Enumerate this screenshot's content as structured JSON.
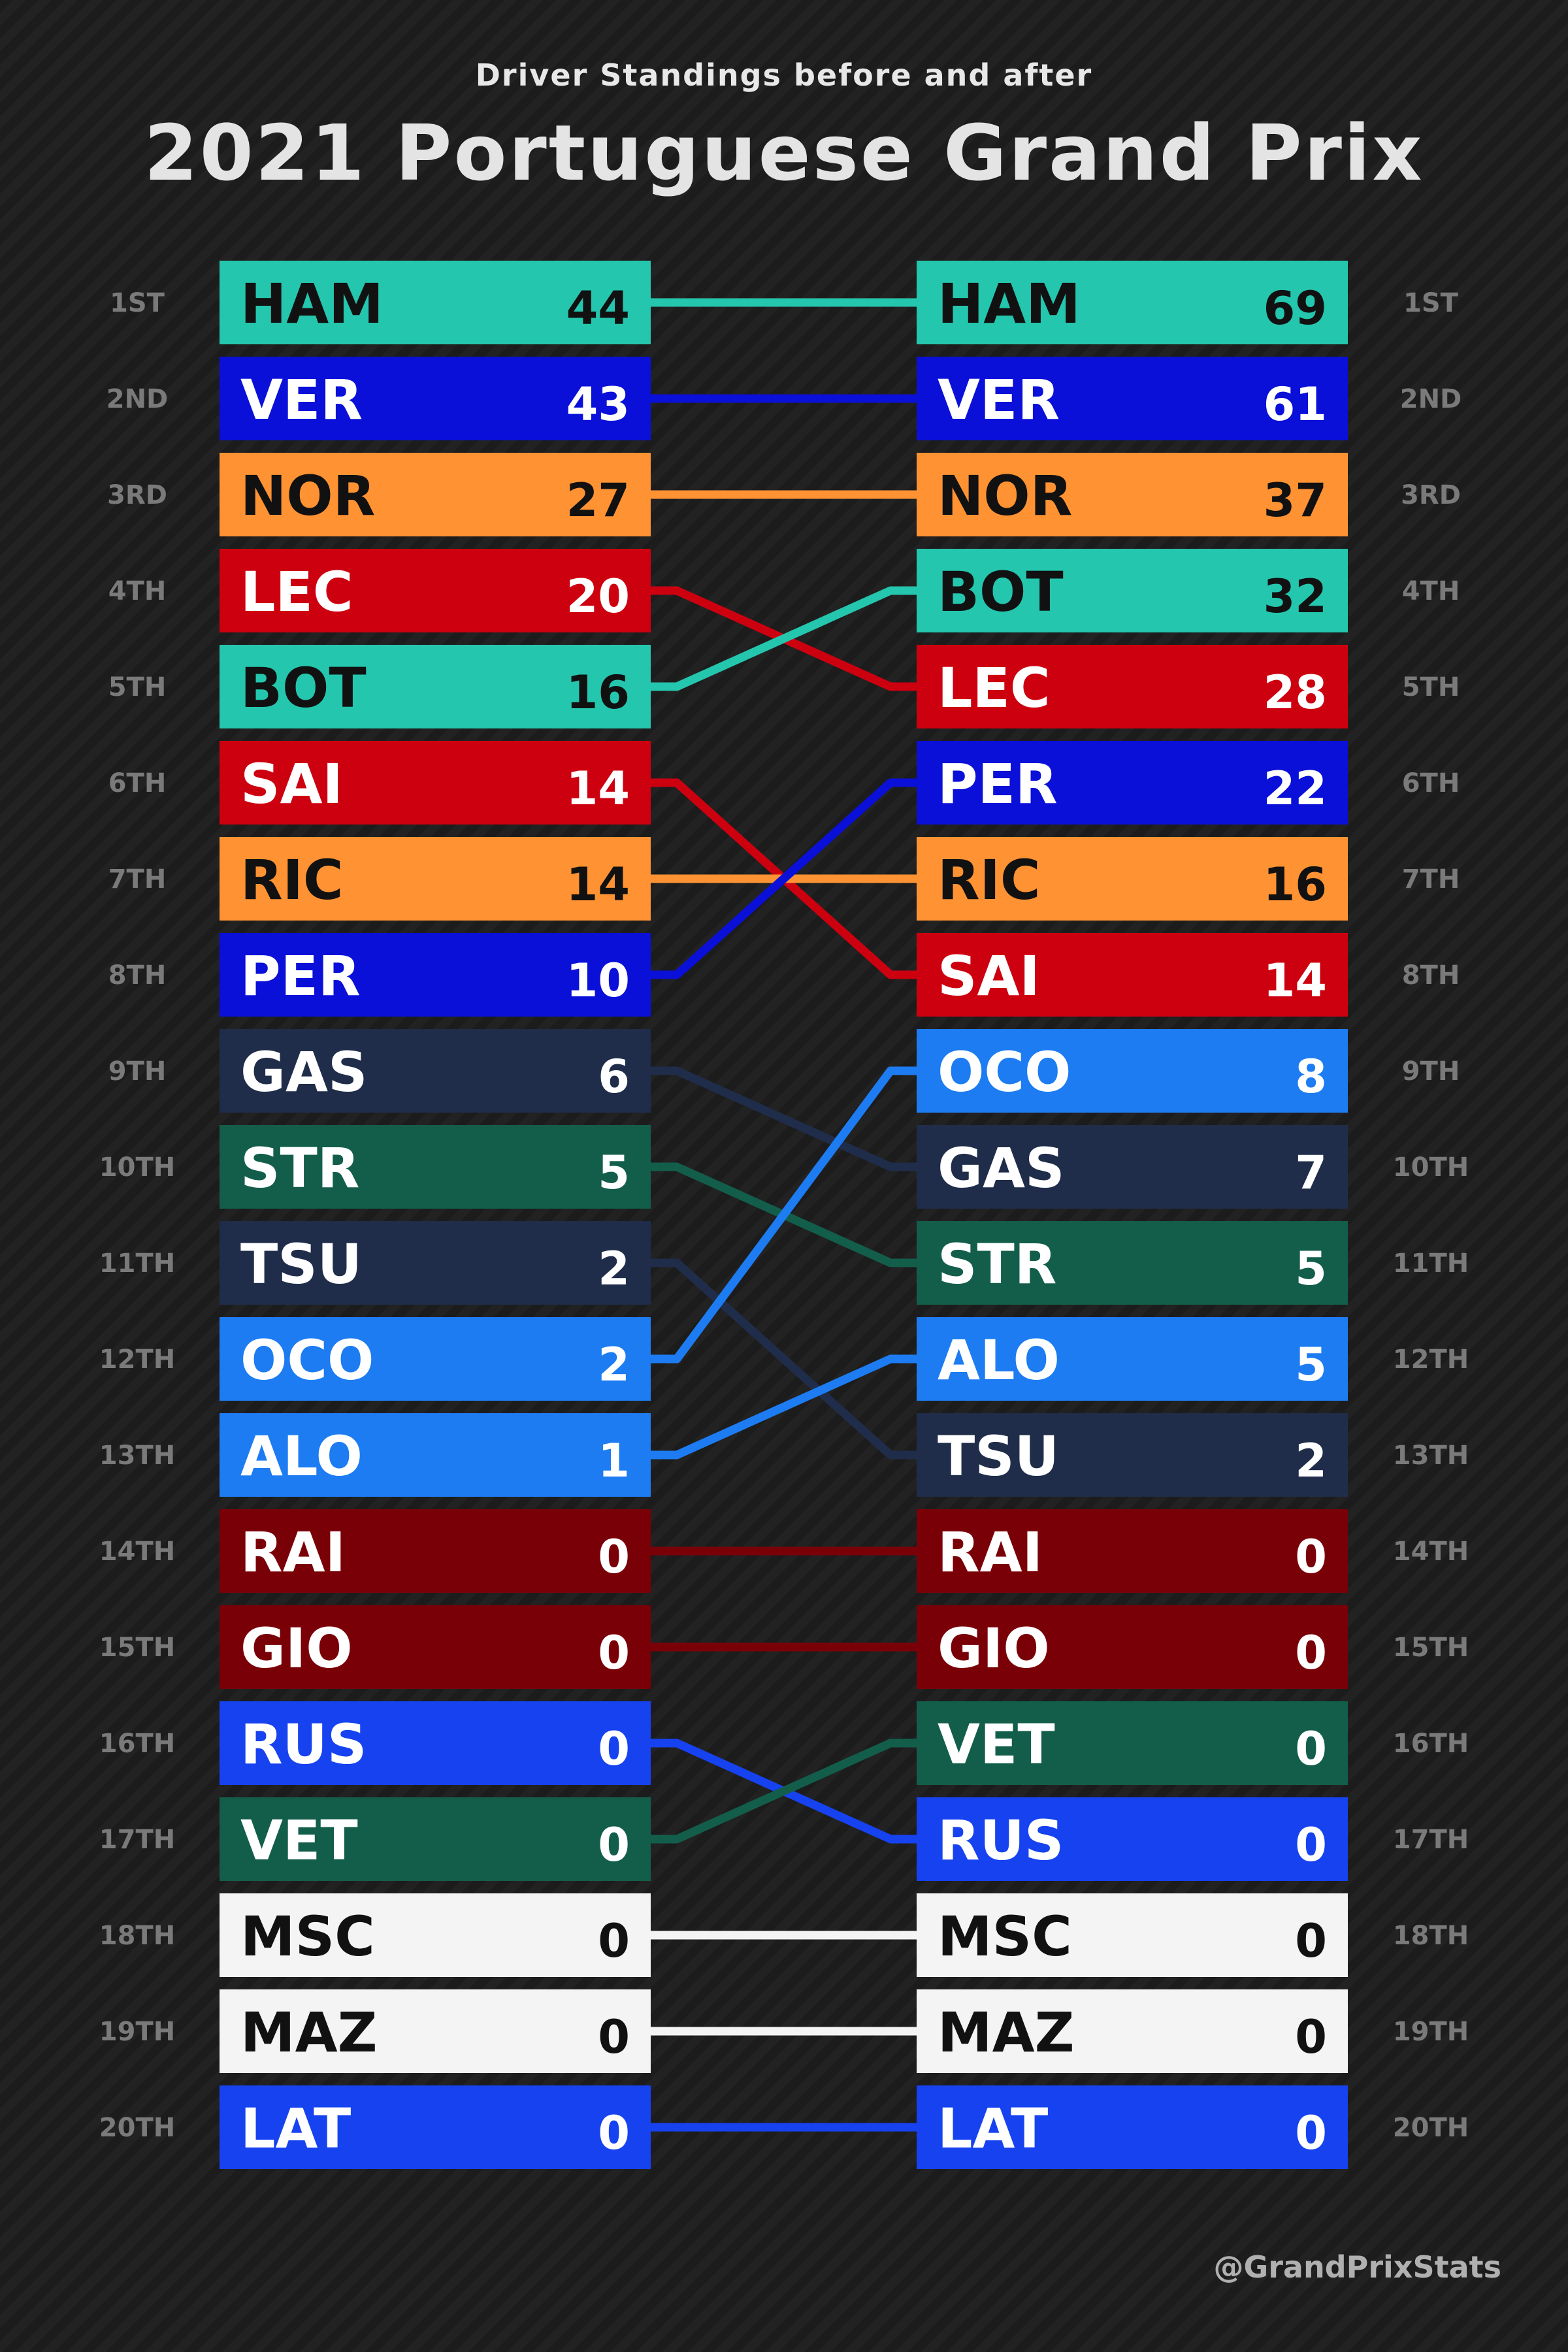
{
  "header": {
    "subtitle": "Driver Standings before and after",
    "title": "2021 Portuguese Grand Prix"
  },
  "credit": "@GrandPrixStats",
  "chart_data": {
    "type": "table",
    "positions": [
      "1ST",
      "2ND",
      "3RD",
      "4TH",
      "5TH",
      "6TH",
      "7TH",
      "8TH",
      "9TH",
      "10TH",
      "11TH",
      "12TH",
      "13TH",
      "14TH",
      "15TH",
      "16TH",
      "17TH",
      "18TH",
      "19TH",
      "20TH"
    ],
    "before": [
      {
        "code": "HAM",
        "points": "44"
      },
      {
        "code": "VER",
        "points": "43"
      },
      {
        "code": "NOR",
        "points": "27"
      },
      {
        "code": "LEC",
        "points": "20"
      },
      {
        "code": "BOT",
        "points": "16"
      },
      {
        "code": "SAI",
        "points": "14"
      },
      {
        "code": "RIC",
        "points": "14"
      },
      {
        "code": "PER",
        "points": "10"
      },
      {
        "code": "GAS",
        "points": "6"
      },
      {
        "code": "STR",
        "points": "5"
      },
      {
        "code": "TSU",
        "points": "2"
      },
      {
        "code": "OCO",
        "points": "2"
      },
      {
        "code": "ALO",
        "points": "1"
      },
      {
        "code": "RAI",
        "points": "0"
      },
      {
        "code": "GIO",
        "points": "0"
      },
      {
        "code": "RUS",
        "points": "0"
      },
      {
        "code": "VET",
        "points": "0"
      },
      {
        "code": "MSC",
        "points": "0"
      },
      {
        "code": "MAZ",
        "points": "0"
      },
      {
        "code": "LAT",
        "points": "0"
      }
    ],
    "after": [
      {
        "code": "HAM",
        "points": "69"
      },
      {
        "code": "VER",
        "points": "61"
      },
      {
        "code": "NOR",
        "points": "37"
      },
      {
        "code": "BOT",
        "points": "32"
      },
      {
        "code": "LEC",
        "points": "28"
      },
      {
        "code": "PER",
        "points": "22"
      },
      {
        "code": "RIC",
        "points": "16"
      },
      {
        "code": "SAI",
        "points": "14"
      },
      {
        "code": "OCO",
        "points": "8"
      },
      {
        "code": "GAS",
        "points": "7"
      },
      {
        "code": "STR",
        "points": "5"
      },
      {
        "code": "ALO",
        "points": "5"
      },
      {
        "code": "TSU",
        "points": "2"
      },
      {
        "code": "RAI",
        "points": "0"
      },
      {
        "code": "GIO",
        "points": "0"
      },
      {
        "code": "VET",
        "points": "0"
      },
      {
        "code": "RUS",
        "points": "0"
      },
      {
        "code": "MSC",
        "points": "0"
      },
      {
        "code": "MAZ",
        "points": "0"
      },
      {
        "code": "LAT",
        "points": "0"
      }
    ],
    "driver_colors": {
      "HAM": "#24c6ae",
      "BOT": "#24c6ae",
      "VER": "#0a10d8",
      "PER": "#0a10d8",
      "NOR": "#ff9232",
      "RIC": "#ff9232",
      "LEC": "#cd0010",
      "SAI": "#cd0010",
      "GAS": "#1f2d4a",
      "TSU": "#1f2d4a",
      "STR": "#135e4b",
      "VET": "#135e4b",
      "OCO": "#1d7cf2",
      "ALO": "#1d7cf2",
      "RAI": "#7a0008",
      "GIO": "#7a0008",
      "RUS": "#1642f0",
      "LAT": "#1642f0",
      "MSC": "#f4f4f4",
      "MAZ": "#f4f4f4"
    },
    "dark_text_codes": [
      "HAM",
      "BOT",
      "NOR",
      "RIC",
      "MSC",
      "MAZ"
    ]
  }
}
